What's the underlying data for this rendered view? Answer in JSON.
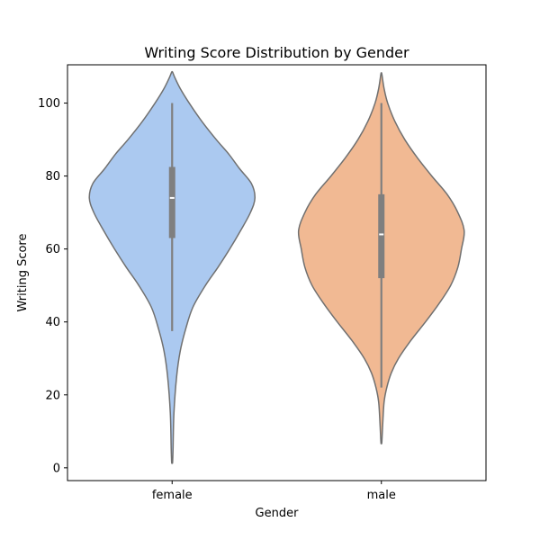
{
  "chart_data": {
    "type": "violin",
    "title": "Writing Score Distribution by Gender",
    "xlabel": "Gender",
    "ylabel": "Writing Score",
    "categories": [
      "female",
      "male"
    ],
    "ylim": [
      -3.5,
      110.5
    ],
    "yticks": [
      0,
      20,
      40,
      60,
      80,
      100
    ],
    "grid": false,
    "colors": {
      "female": "#abc9f0",
      "male": "#f1b993",
      "outline": "#707070",
      "box": "#7f7f7f",
      "median": "#ffffff"
    },
    "series": [
      {
        "category": "female",
        "stats": {
          "min": 37.5,
          "q1": 63,
          "median": 74,
          "q3": 82.5,
          "max": 100
        },
        "density_profile": [
          {
            "y": 1.5,
            "w": 0.5
          },
          {
            "y": 5,
            "w": 1
          },
          {
            "y": 15,
            "w": 2
          },
          {
            "y": 25,
            "w": 5
          },
          {
            "y": 32,
            "w": 9
          },
          {
            "y": 38,
            "w": 15
          },
          {
            "y": 44,
            "w": 23
          },
          {
            "y": 50,
            "w": 37
          },
          {
            "y": 55,
            "w": 51
          },
          {
            "y": 60,
            "w": 64
          },
          {
            "y": 65,
            "w": 76
          },
          {
            "y": 70,
            "w": 87
          },
          {
            "y": 74,
            "w": 92
          },
          {
            "y": 78,
            "w": 88
          },
          {
            "y": 82,
            "w": 75
          },
          {
            "y": 86,
            "w": 63
          },
          {
            "y": 90,
            "w": 49
          },
          {
            "y": 95,
            "w": 33
          },
          {
            "y": 100,
            "w": 19
          },
          {
            "y": 104,
            "w": 9
          },
          {
            "y": 107,
            "w": 3
          },
          {
            "y": 108.5,
            "w": 0.5
          }
        ]
      },
      {
        "category": "male",
        "stats": {
          "min": 22,
          "q1": 52,
          "median": 64,
          "q3": 75,
          "max": 100
        },
        "density_profile": [
          {
            "y": 7,
            "w": 0.5
          },
          {
            "y": 12,
            "w": 1.5
          },
          {
            "y": 18,
            "w": 3
          },
          {
            "y": 22,
            "w": 6
          },
          {
            "y": 26,
            "w": 11
          },
          {
            "y": 30,
            "w": 19
          },
          {
            "y": 35,
            "w": 33
          },
          {
            "y": 40,
            "w": 49
          },
          {
            "y": 45,
            "w": 64
          },
          {
            "y": 50,
            "w": 77
          },
          {
            "y": 55,
            "w": 85
          },
          {
            "y": 60,
            "w": 89
          },
          {
            "y": 65,
            "w": 92
          },
          {
            "y": 70,
            "w": 85
          },
          {
            "y": 75,
            "w": 73
          },
          {
            "y": 80,
            "w": 56
          },
          {
            "y": 85,
            "w": 40
          },
          {
            "y": 90,
            "w": 26
          },
          {
            "y": 95,
            "w": 15
          },
          {
            "y": 100,
            "w": 7
          },
          {
            "y": 104,
            "w": 3
          },
          {
            "y": 108,
            "w": 0.5
          }
        ]
      }
    ]
  }
}
